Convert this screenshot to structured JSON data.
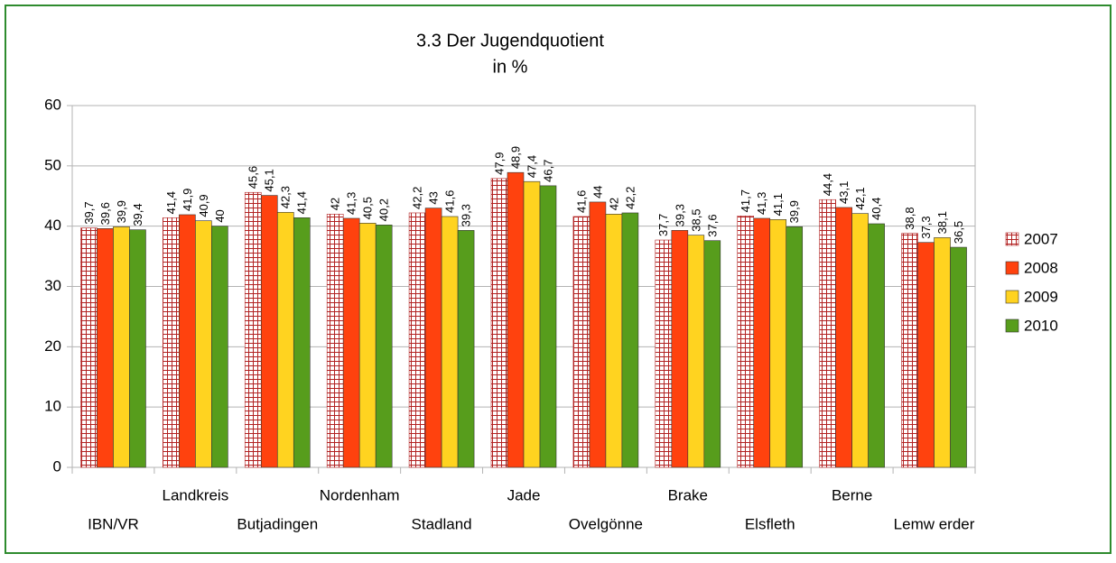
{
  "chart_data": {
    "type": "bar",
    "title": "3.3 Der Jugendquotient",
    "subtitle": "in %",
    "categories": [
      "IBN/VR",
      "Landkreis",
      "Butjadingen",
      "Nordenham",
      "Stadland",
      "Jade",
      "Ovelgönne",
      "Brake",
      "Elsfleth",
      "Berne",
      "Lemw erder"
    ],
    "series": [
      {
        "name": "2007",
        "color": "#b22222",
        "pattern": "grid",
        "values": [
          39.7,
          41.4,
          45.6,
          42,
          42.2,
          47.9,
          41.6,
          37.7,
          41.7,
          44.4,
          38.8
        ],
        "value_labels": [
          "39,7",
          "41,4",
          "45,6",
          "42",
          "42,2",
          "47,9",
          "41,6",
          "37,7",
          "41,7",
          "44,4",
          "38,8"
        ]
      },
      {
        "name": "2008",
        "color": "#ff420e",
        "values": [
          39.6,
          41.9,
          45.1,
          41.3,
          43,
          48.9,
          44,
          39.3,
          41.3,
          43.1,
          37.3
        ],
        "value_labels": [
          "39,6",
          "41,9",
          "45,1",
          "41,3",
          "43",
          "48,9",
          "44",
          "39,3",
          "41,3",
          "43,1",
          "37,3"
        ]
      },
      {
        "name": "2009",
        "color": "#ffd320",
        "values": [
          39.9,
          40.9,
          42.3,
          40.5,
          41.6,
          47.4,
          42,
          38.5,
          41.1,
          42.1,
          38.1
        ],
        "value_labels": [
          "39,9",
          "40,9",
          "42,3",
          "40,5",
          "41,6",
          "47,4",
          "42",
          "38,5",
          "41,1",
          "42,1",
          "38,1"
        ]
      },
      {
        "name": "2010",
        "color": "#579d1c",
        "values": [
          39.4,
          40,
          41.4,
          40.2,
          39.3,
          46.7,
          42.2,
          37.6,
          39.9,
          40.4,
          36.5
        ],
        "value_labels": [
          "39,4",
          "40",
          "41,4",
          "40,2",
          "39,3",
          "46,7",
          "42,2",
          "37,6",
          "39,9",
          "40,4",
          "36,5"
        ]
      }
    ],
    "ylim": [
      0,
      60
    ],
    "yticks": [
      0,
      10,
      20,
      30,
      40,
      50,
      60
    ],
    "grid": true,
    "legend": "right"
  }
}
